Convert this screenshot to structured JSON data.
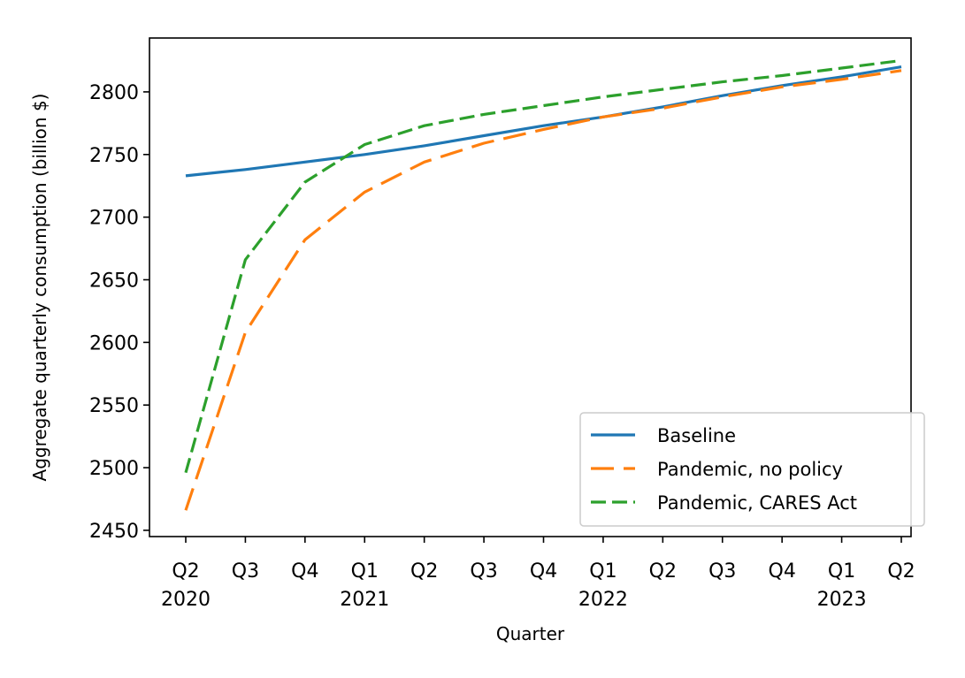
{
  "chart_data": {
    "type": "line",
    "title": "",
    "xlabel": "Quarter",
    "ylabel": "Aggregate quarterly consumption (billion $)",
    "categories": [
      "Q2",
      "Q3",
      "Q4",
      "Q1",
      "Q2",
      "Q3",
      "Q4",
      "Q1",
      "Q2",
      "Q3",
      "Q4",
      "Q1",
      "Q2"
    ],
    "year_labels": [
      {
        "index": 0,
        "label": "2020"
      },
      {
        "index": 3,
        "label": "2021"
      },
      {
        "index": 7,
        "label": "2022"
      },
      {
        "index": 11,
        "label": "2023"
      }
    ],
    "ylim": [
      2445,
      2843
    ],
    "yticks": [
      2450,
      2500,
      2550,
      2600,
      2650,
      2700,
      2750,
      2800
    ],
    "grid": false,
    "legend_position": "lower-right",
    "series": [
      {
        "name": "Baseline",
        "color": "#1f77b4",
        "dash": "solid",
        "values": [
          2733,
          2738,
          2744,
          2750,
          2757,
          2765,
          2773,
          2780,
          2788,
          2797,
          2805,
          2812,
          2820
        ]
      },
      {
        "name": "Pandemic, no policy",
        "color": "#ff7f0e",
        "dash": "long-dash",
        "values": [
          2466,
          2608,
          2682,
          2720,
          2744,
          2759,
          2770,
          2780,
          2787,
          2796,
          2804,
          2810,
          2817
        ]
      },
      {
        "name": "Pandemic, CARES Act",
        "color": "#2ca02c",
        "dash": "dashed",
        "values": [
          2496,
          2666,
          2728,
          2758,
          2773,
          2782,
          2789,
          2796,
          2802,
          2808,
          2813,
          2819,
          2825
        ]
      }
    ]
  }
}
